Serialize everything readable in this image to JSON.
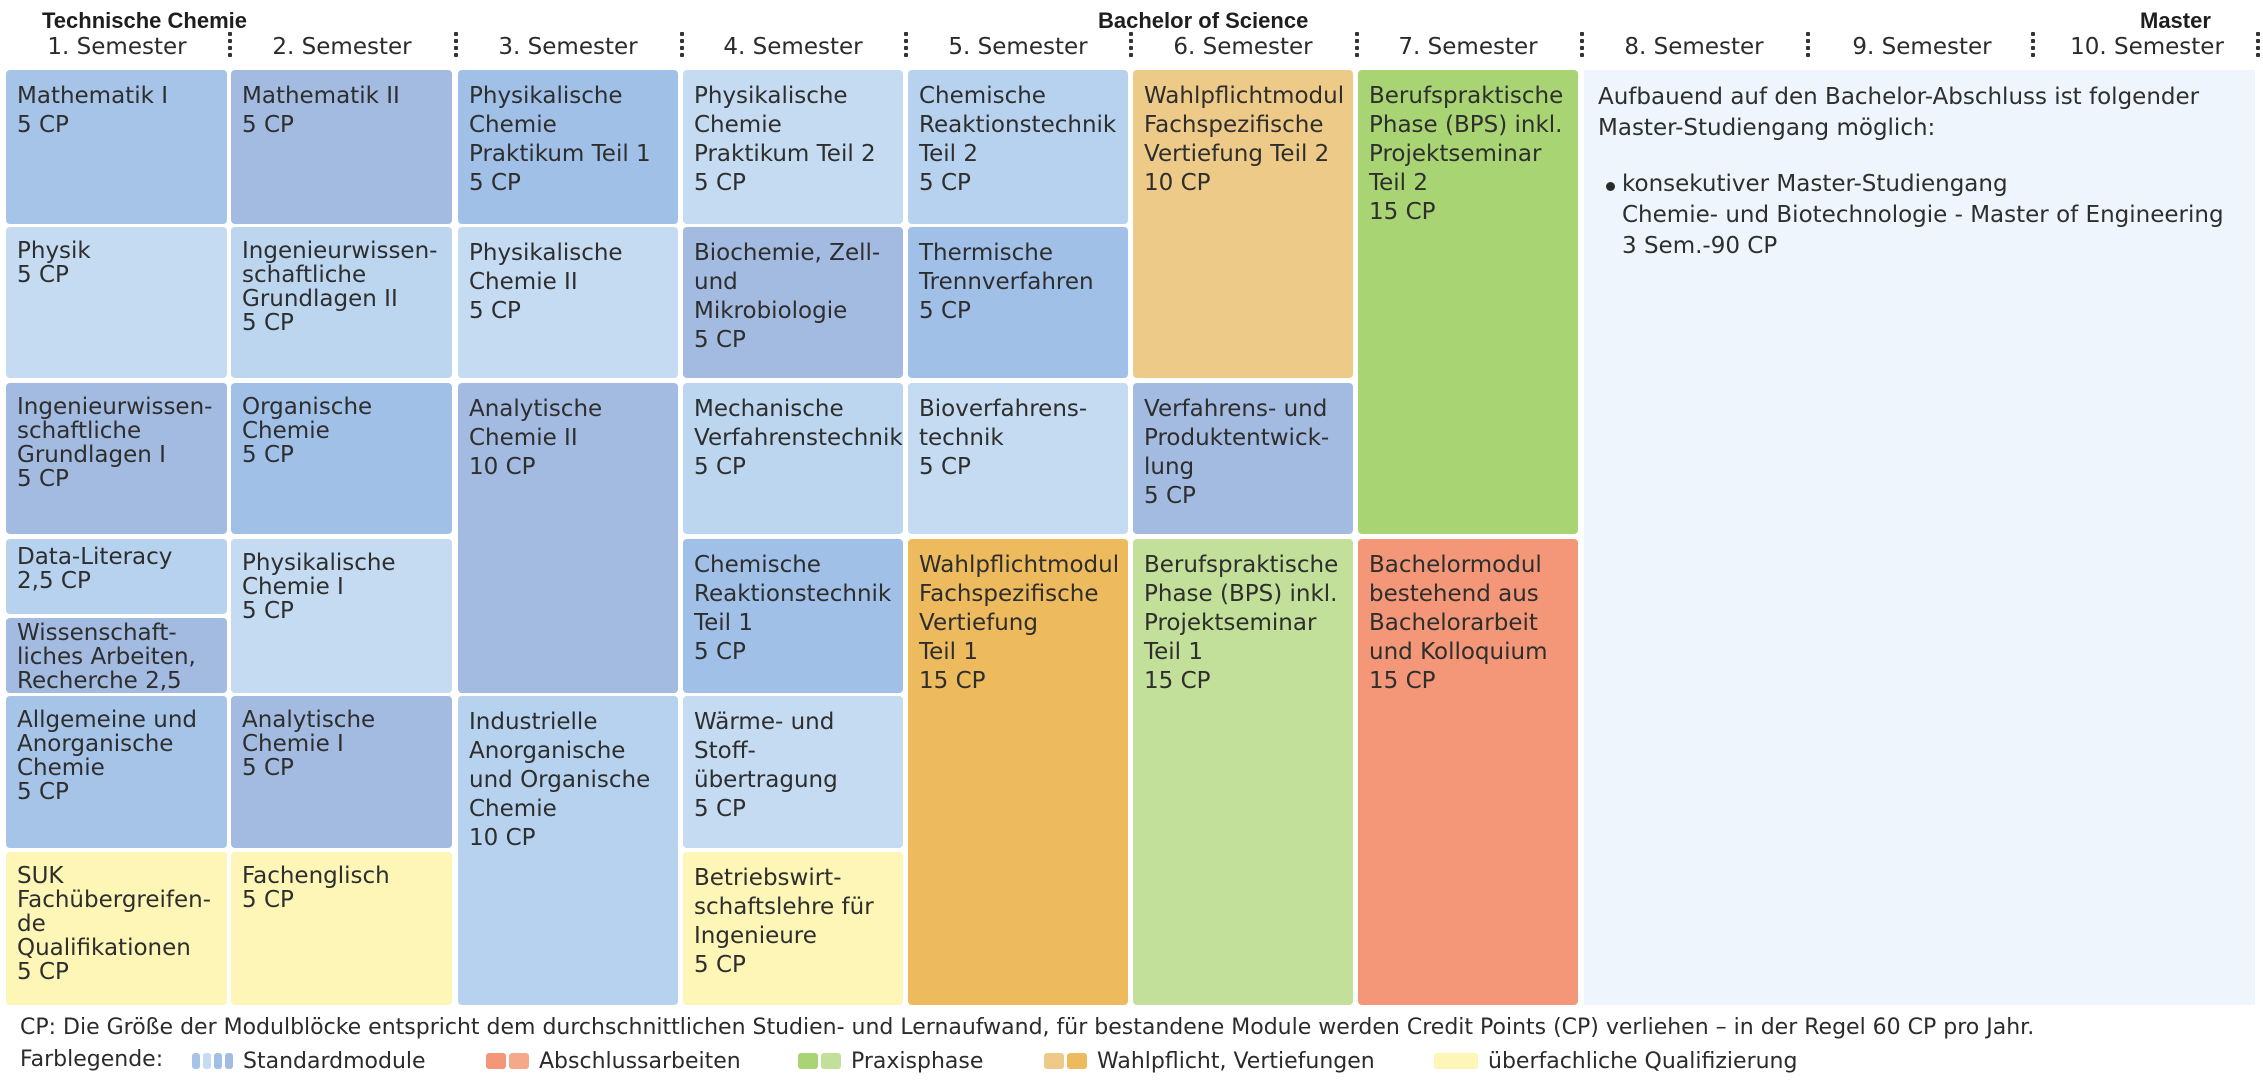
{
  "header": {
    "left_title": "Technische Chemie",
    "center_title": "Bachelor of Science",
    "right_title": "Master",
    "semesters": [
      "1. Semester",
      "2. Semester",
      "3. Semester",
      "4. Semester",
      "5. Semester",
      "6. Semester",
      "7. Semester",
      "8. Semester",
      "9. Semester",
      "10. Semester"
    ]
  },
  "modules": {
    "s1": [
      {
        "text": "Mathematik I\n5 CP",
        "color": "#a6c4e8"
      },
      {
        "text": "Physik\n5 CP",
        "color": "#c5dbf2"
      },
      {
        "text": "Ingenieurwissen-\nschaftliche\nGrundlagen I\n5 CP",
        "color": "#a3bbe0"
      },
      {
        "text": "Data-Literacy\n2,5 CP",
        "color": "#b7d2ef"
      },
      {
        "text": "Wissenschaft-\nliches Arbeiten,\nRecherche 2,5 CP",
        "color": "#a3bbe0"
      },
      {
        "text": "Allgemeine und\nAnorganische\nChemie\n5 CP",
        "color": "#a6c4e8"
      },
      {
        "text": "SUK\nFachübergreifen-\nde Qualifikationen\n5 CP",
        "color": "#fdf6b6"
      }
    ],
    "s2": [
      {
        "text": "Mathematik II\n5 CP",
        "color": "#a3bbe0"
      },
      {
        "text": "Ingenieurwissen-\nschaftliche\nGrundlagen II\n5 CP",
        "color": "#bcd6f0"
      },
      {
        "text": "Organische\nChemie\n5 CP",
        "color": "#a0c0e8"
      },
      {
        "text": "Physikalische\nChemie I\n5 CP",
        "color": "#c5dbf2"
      },
      {
        "text": "Analytische\nChemie I\n5 CP",
        "color": "#a3bbe0"
      },
      {
        "text": "Fachenglisch\n5 CP",
        "color": "#fdf6b6"
      }
    ],
    "s3": [
      {
        "text": "Physikalische\nChemie\nPraktikum Teil 1\n5 CP",
        "color": "#a0c0e8"
      },
      {
        "text": "Physikalische\nChemie II\n5 CP",
        "color": "#c5dbf2"
      },
      {
        "text": "Analytische\nChemie II\n10 CP",
        "color": "#a3bbe0"
      },
      {
        "text": "Industrielle\nAnorganische\nund Organische\nChemie\n10 CP",
        "color": "#b7d2ef"
      }
    ],
    "s4": [
      {
        "text": "Physikalische\nChemie\nPraktikum Teil 2\n5 CP",
        "color": "#c5dbf2"
      },
      {
        "text": "Biochemie, Zell-\nund Mikrobiologie\n5 CP",
        "color": "#a3bbe0"
      },
      {
        "text": "Mechanische\nVerfahrenstechnik\n5 CP",
        "color": "#bcd6f0"
      },
      {
        "text": "Chemische\nReaktionstechnik\nTeil 1\n5 CP",
        "color": "#a0c0e8"
      },
      {
        "text": "Wärme- und Stoff-\nübertragung\n5 CP",
        "color": "#c5dbf2"
      },
      {
        "text": "Betriebswirt-\nschaftslehre für\nIngenieure\n5 CP",
        "color": "#fdf6b6"
      }
    ],
    "s5": [
      {
        "text": "Chemische\nReaktionstechnik\nTeil 2\n5 CP",
        "color": "#b7d2ef"
      },
      {
        "text": "Thermische\nTrennverfahren\n5 CP",
        "color": "#a0c0e8"
      },
      {
        "text": "Bioverfahrens-\ntechnik\n5 CP",
        "color": "#c5dbf2"
      },
      {
        "text": "Wahlpflichtmodul\nFachspezifische\nVertiefung\nTeil 1\n15 CP",
        "color": "#eeba5e"
      }
    ],
    "s6": [
      {
        "text": "Wahlpflichtmodul\nFachspezifische\nVertiefung Teil 2\n10 CP",
        "color": "#eeca88"
      },
      {
        "text": "Verfahrens- und\nProduktentwick-\nlung\n5 CP",
        "color": "#a3bbe0"
      },
      {
        "text": "Berufspraktische\nPhase (BPS) inkl.\nProjektseminar\nTeil 1\n15 CP",
        "color": "#c2e09a"
      }
    ],
    "s7": [
      {
        "text": "Berufspraktische\nPhase (BPS) inkl.\nProjektseminar\nTeil 2\n15 CP",
        "color": "#a9d474"
      },
      {
        "text": "Bachelormodul\nbestehend aus\nBachelorarbeit\nund Kolloquium\n15 CP",
        "color": "#f39778"
      }
    ]
  },
  "master": {
    "intro": "Aufbauend auf den Bachelor-Abschluss ist folgender Master-Studiengang möglich:",
    "item_line1": "konsekutiver Master-Studiengang",
    "item_line2": "Chemie- und Biotechnologie - Master of Engineering",
    "item_line3": "3 Sem.-90 CP"
  },
  "footer": {
    "note": "CP: Die Größe der Modulblöcke entspricht dem durchschnittlichen Studien- und Lernaufwand, für bestandene Module werden Credit Points (CP) verliehen – in der Regel 60 CP pro Jahr.",
    "legend_label": "Farblegende:",
    "legend": [
      {
        "label": "Standardmodule",
        "colors": [
          "#a6c4e8",
          "#c5dbf2",
          "#a0c0e8",
          "#a3bbe0"
        ]
      },
      {
        "label": "Abschlussarbeiten",
        "colors": [
          "#f39778",
          "#f5a988"
        ]
      },
      {
        "label": "Praxisphase",
        "colors": [
          "#a9d474",
          "#c2e09a"
        ]
      },
      {
        "label": "Wahlpflicht, Vertiefungen",
        "colors": [
          "#eeca88",
          "#eeba5e"
        ]
      },
      {
        "label": "überfachliche Qualifizierung",
        "colors": [
          "#fdf6b6"
        ]
      }
    ]
  }
}
